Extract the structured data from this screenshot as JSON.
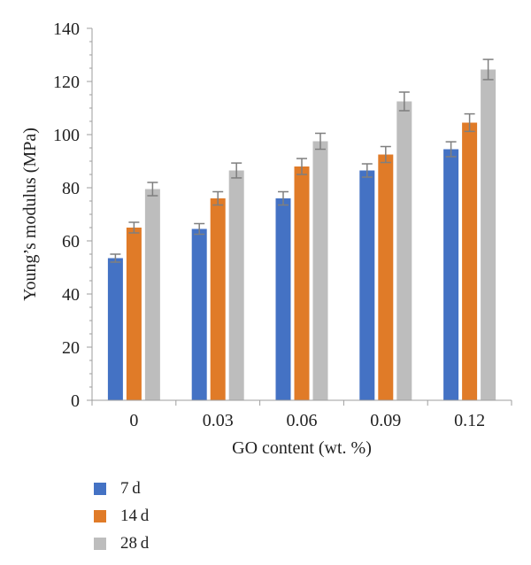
{
  "chart_data": {
    "type": "bar",
    "xlabel": "GO content (wt. %)",
    "ylabel": "Young’s modulus (MPa)",
    "ylim": [
      0,
      140
    ],
    "yticks": [
      0,
      20,
      40,
      60,
      80,
      100,
      120,
      140
    ],
    "categories": [
      "0",
      "0.03",
      "0.06",
      "0.09",
      "0.12"
    ],
    "legend_position": "bottom-left",
    "series": [
      {
        "name": "7 d",
        "color": "#4472C4",
        "values": [
          53.5,
          64.5,
          76,
          86.5,
          94.5
        ],
        "errors": [
          1.5,
          2,
          2.5,
          2.5,
          2.8
        ]
      },
      {
        "name": "14 d",
        "color": "#E07B28",
        "values": [
          65,
          76,
          88,
          92.5,
          104.5
        ],
        "errors": [
          2,
          2.5,
          3,
          3,
          3.3
        ]
      },
      {
        "name": "28 d",
        "color": "#BDBDBD",
        "values": [
          79.5,
          86.5,
          97.5,
          112.5,
          124.5
        ],
        "errors": [
          2.5,
          2.8,
          3,
          3.5,
          3.8
        ]
      }
    ],
    "error_bar_color": "#7F7F7F"
  }
}
